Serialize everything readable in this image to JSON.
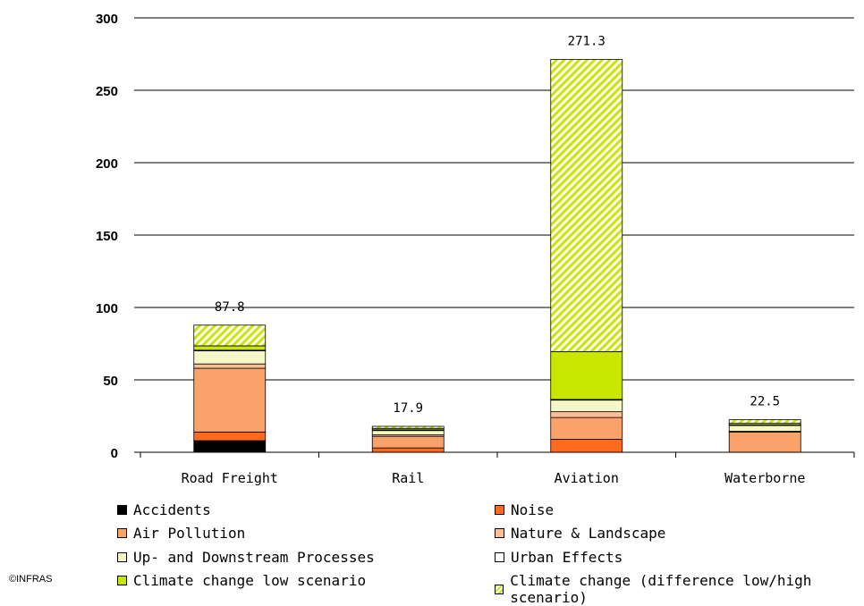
{
  "chart_data": {
    "type": "bar",
    "stacked": true,
    "categories": [
      "Road Freight",
      "Rail",
      "Aviation",
      "Waterborne"
    ],
    "totals": [
      "87.8",
      "17.9",
      "271.3",
      "22.5"
    ],
    "ylim": [
      0,
      300
    ],
    "yticks": [
      "0",
      "50",
      "100",
      "150",
      "200",
      "250",
      "300"
    ],
    "grid": true,
    "legend_position": "bottom",
    "series": [
      {
        "name": "Accidents",
        "color": "#000000",
        "pattern": "solid",
        "values": [
          8,
          0,
          0,
          0
        ]
      },
      {
        "name": "Noise",
        "color": "#ff6a1f",
        "pattern": "solid",
        "values": [
          6,
          3,
          9,
          0
        ]
      },
      {
        "name": "Air Pollution",
        "color": "#f9a36b",
        "pattern": "solid",
        "values": [
          44,
          8,
          15,
          14
        ]
      },
      {
        "name": "Nature & Landscape",
        "color": "#fbbe96",
        "pattern": "solid",
        "values": [
          3,
          1,
          4,
          0.5
        ]
      },
      {
        "name": "Up- and Downstream Processes",
        "color": "#f6f7c8",
        "pattern": "solid",
        "values": [
          9,
          3,
          8,
          4
        ]
      },
      {
        "name": "Urban Effects",
        "color": "#ffffff",
        "pattern": "solid",
        "values": [
          0.5,
          0.5,
          0.5,
          0.5
        ]
      },
      {
        "name": "Climate change low scenario",
        "color": "#c8e600",
        "pattern": "solid",
        "values": [
          3,
          1,
          33,
          1
        ]
      },
      {
        "name": "Climate change (difference low/high scenario)",
        "color": "#c8e600",
        "pattern": "hatch",
        "values": [
          14.3,
          1.4,
          201.8,
          2.5
        ]
      }
    ]
  },
  "credit": "©INFRAS"
}
